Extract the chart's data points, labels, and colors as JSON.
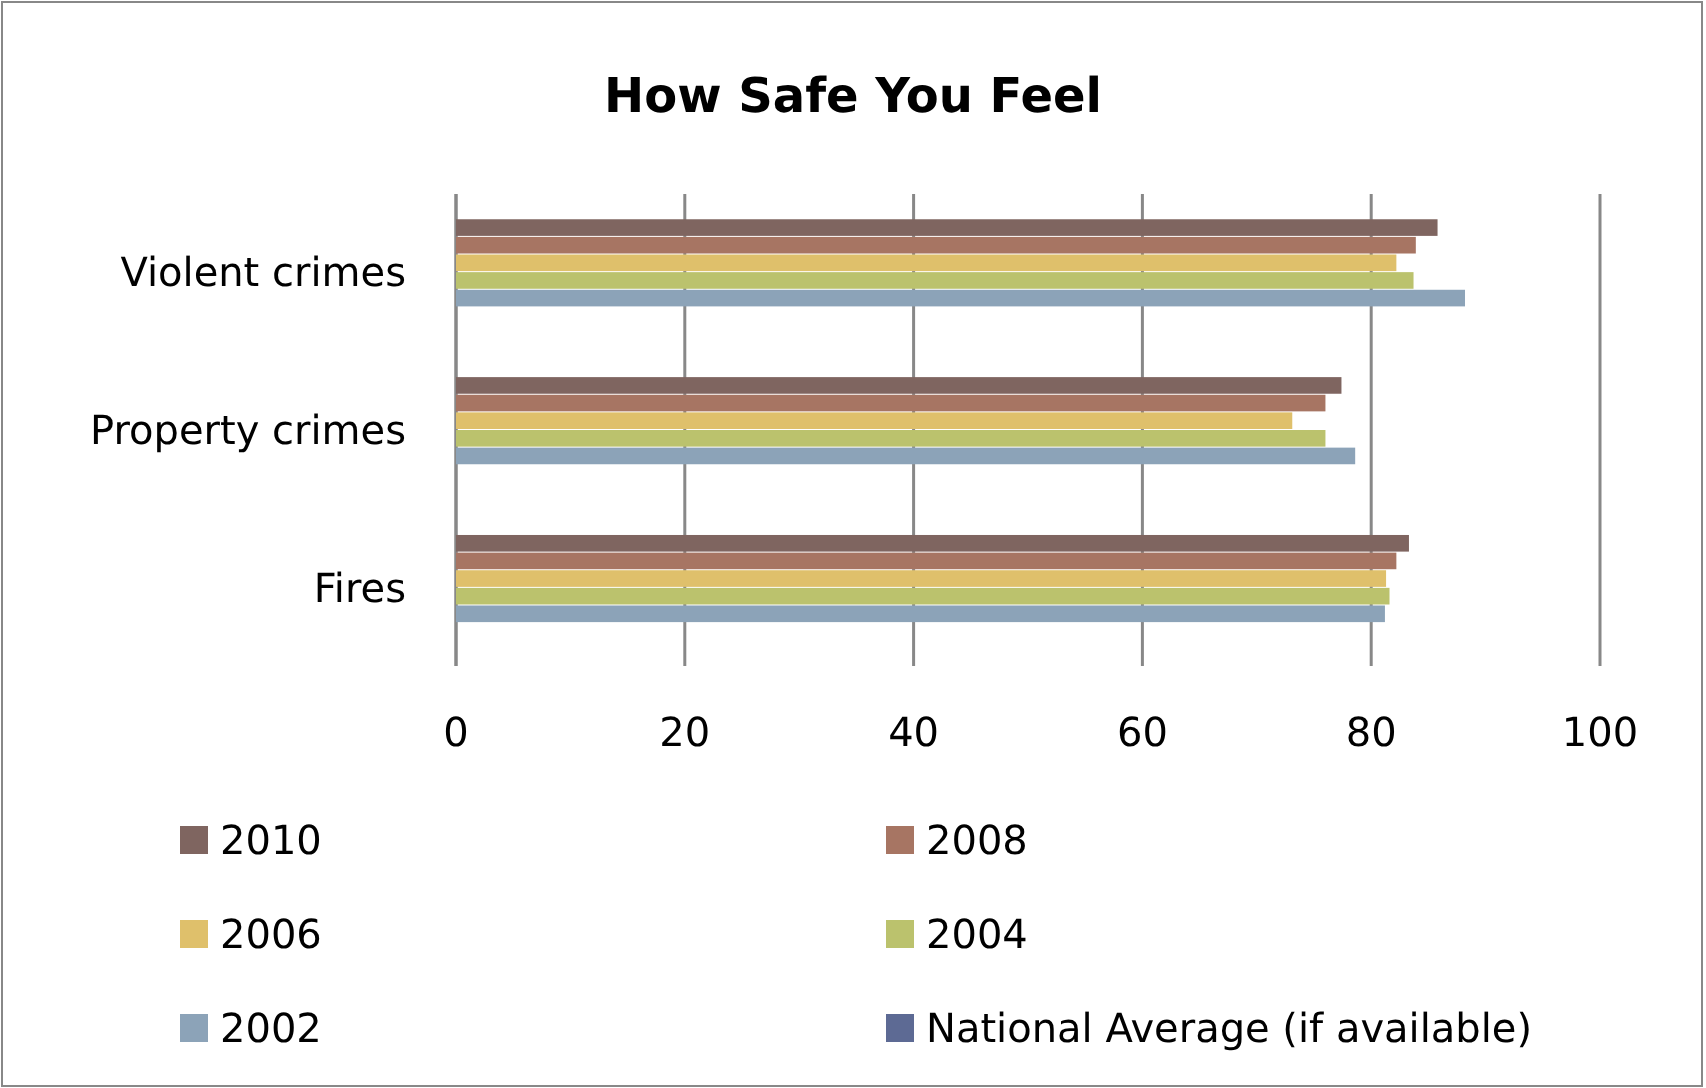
{
  "chart_data": {
    "type": "bar",
    "orientation": "horizontal",
    "title": "How Safe You Feel",
    "categories": [
      "Violent crimes",
      "Property crimes",
      "Fires"
    ],
    "series": [
      {
        "name": "2010",
        "color": "#7f6560",
        "values": [
          85.8,
          77.4,
          83.3
        ]
      },
      {
        "name": "2008",
        "color": "#a77563",
        "values": [
          83.9,
          76.0,
          82.2
        ]
      },
      {
        "name": "2006",
        "color": "#dfc06b",
        "values": [
          82.2,
          73.1,
          81.3
        ]
      },
      {
        "name": "2004",
        "color": "#bbc26d",
        "values": [
          83.7,
          76.0,
          81.6
        ]
      },
      {
        "name": "2002",
        "color": "#8ca3b8",
        "values": [
          88.2,
          78.6,
          81.2
        ]
      },
      {
        "name": "National Average (if available)",
        "color": "#5d6a94",
        "values": [
          null,
          null,
          null
        ]
      }
    ],
    "xlim": [
      0,
      100
    ],
    "xticks": [
      0,
      20,
      40,
      60,
      80,
      100
    ],
    "grid": "x",
    "legend": "bottom"
  }
}
